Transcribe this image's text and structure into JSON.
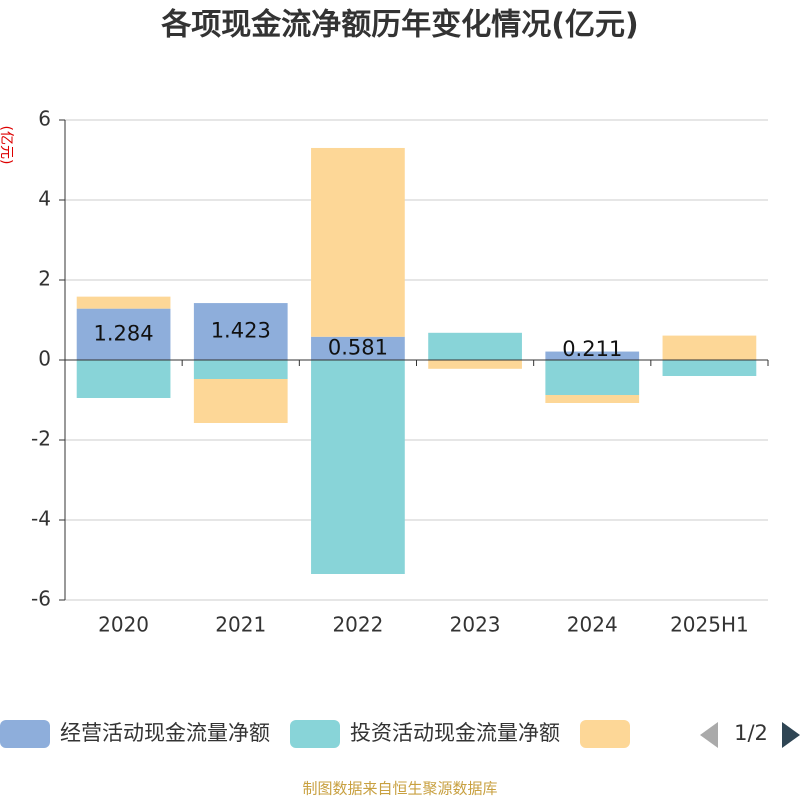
{
  "chart_data": {
    "type": "stacked_bar",
    "title": "各项现金流净额历年变化情况(亿元)",
    "y_label": "(亿元)",
    "categories": [
      "2020",
      "2021",
      "2022",
      "2023",
      "2024",
      "2025H1"
    ],
    "series": [
      {
        "name": "经营活动现金流量净额",
        "color": "#8eaedb",
        "values": [
          1.284,
          1.423,
          0.581,
          0.01,
          0.211,
          0.01
        ],
        "value_labels": [
          "1.284",
          "1.423",
          "0.581",
          null,
          "0.211",
          null
        ]
      },
      {
        "name": "投资活动现金流量净额",
        "color": "#88d4d8",
        "values": [
          -0.95,
          -0.475,
          -5.35,
          0.67,
          -0.875,
          -0.4
        ]
      },
      {
        "name": null,
        "color": "#fdd797",
        "values": [
          0.3,
          -1.1,
          4.72,
          -0.22,
          -0.2,
          0.6
        ]
      }
    ],
    "ylim": [
      -6,
      6
    ],
    "yticks": [
      -6,
      -4,
      -2,
      0,
      2,
      4,
      6
    ],
    "grid": true,
    "legend_page": "1/2",
    "footer": "制图数据来自恒生聚源数据库"
  }
}
